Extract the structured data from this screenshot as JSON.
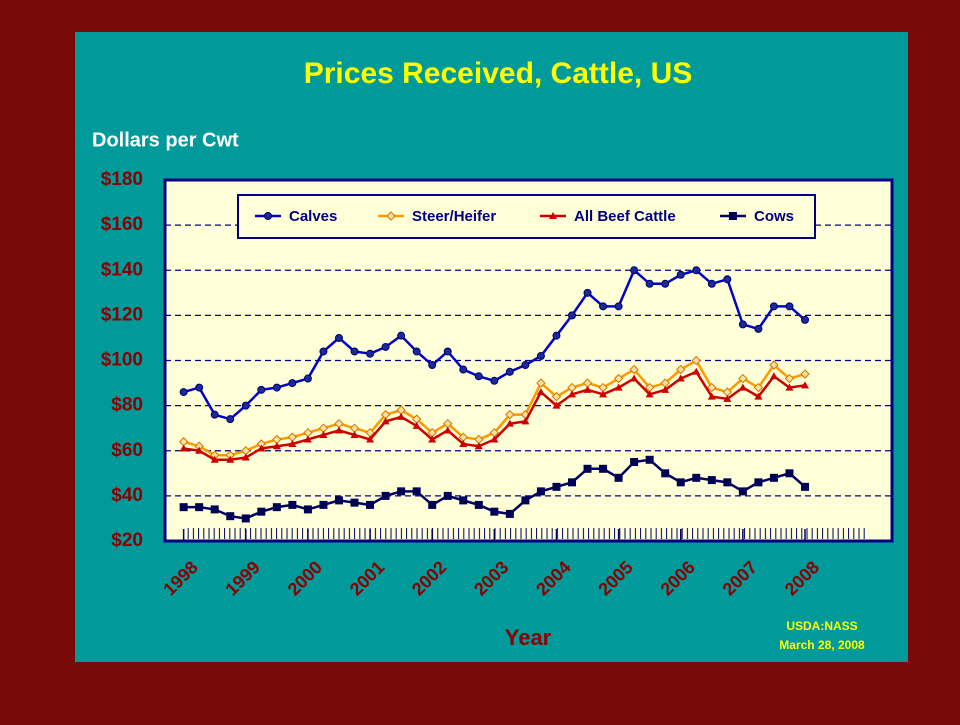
{
  "chart_data": {
    "type": "line",
    "title": "Prices Received, Cattle, US",
    "y_label": "Dollars per Cwt",
    "x_label": "Year",
    "source": [
      "USDA:NASS",
      "March 28, 2008"
    ],
    "xlim": [
      1997.7,
      2009.4
    ],
    "xticks": [
      1998,
      1999,
      2000,
      2001,
      2002,
      2003,
      2004,
      2005,
      2006,
      2007,
      2008
    ],
    "ylim": [
      20,
      180
    ],
    "yticks": [
      {
        "value": 20,
        "label": "$20"
      },
      {
        "value": 40,
        "label": "$40"
      },
      {
        "value": 60,
        "label": "$60"
      },
      {
        "value": 80,
        "label": "$80"
      },
      {
        "value": 100,
        "label": "$100"
      },
      {
        "value": 120,
        "label": "$120"
      },
      {
        "value": 140,
        "label": "$140"
      },
      {
        "value": 160,
        "label": "$160"
      },
      {
        "value": 180,
        "label": "$180"
      }
    ],
    "grid": true,
    "legend": "top",
    "x": [
      1998,
      1998.25,
      1998.5,
      1998.75,
      1999,
      1999.25,
      1999.5,
      1999.75,
      2000,
      2000.25,
      2000.5,
      2000.75,
      2001,
      2001.25,
      2001.5,
      2001.75,
      2002,
      2002.25,
      2002.5,
      2002.75,
      2003,
      2003.25,
      2003.5,
      2003.75,
      2004,
      2004.25,
      2004.5,
      2004.75,
      2005,
      2005.25,
      2005.5,
      2005.75,
      2006,
      2006.25,
      2006.5,
      2006.75,
      2007,
      2007.25,
      2007.5,
      2007.75,
      2008
    ],
    "series": [
      {
        "name": "Calves",
        "color": "#0000cc",
        "marker": "circle",
        "values": [
          86,
          88,
          76,
          74,
          80,
          87,
          88,
          90,
          92,
          104,
          110,
          104,
          103,
          106,
          111,
          104,
          98,
          104,
          96,
          93,
          91,
          95,
          98,
          102,
          111,
          120,
          130,
          124,
          124,
          140,
          134,
          134,
          138,
          140,
          134,
          136,
          116,
          114,
          124,
          124,
          118
        ]
      },
      {
        "name": "Steer/Heifer",
        "color": "#ff9900",
        "marker": "diamond",
        "values": [
          64,
          62,
          58,
          58,
          60,
          63,
          65,
          66,
          68,
          70,
          72,
          70,
          68,
          76,
          78,
          74,
          68,
          72,
          66,
          65,
          68,
          76,
          76,
          90,
          84,
          88,
          90,
          88,
          92,
          96,
          88,
          90,
          96,
          100,
          88,
          86,
          92,
          88,
          98,
          92,
          94
        ]
      },
      {
        "name": "All Beef Cattle",
        "color": "#cc0000",
        "marker": "triangle",
        "values": [
          61,
          60,
          56,
          56,
          57,
          61,
          62,
          63,
          65,
          67,
          69,
          67,
          65,
          73,
          75,
          71,
          65,
          69,
          63,
          62,
          65,
          72,
          73,
          86,
          80,
          85,
          87,
          85,
          88,
          92,
          85,
          87,
          92,
          95,
          84,
          83,
          88,
          84,
          93,
          88,
          89
        ]
      },
      {
        "name": "Cows",
        "color": "#000066",
        "marker": "square",
        "values": [
          35,
          35,
          34,
          31,
          30,
          33,
          35,
          36,
          34,
          36,
          38,
          37,
          36,
          40,
          42,
          42,
          36,
          40,
          38,
          36,
          33,
          32,
          38,
          42,
          44,
          46,
          52,
          52,
          48,
          55,
          56,
          50,
          46,
          48,
          47,
          46,
          42,
          46,
          48,
          50,
          44
        ]
      }
    ]
  }
}
